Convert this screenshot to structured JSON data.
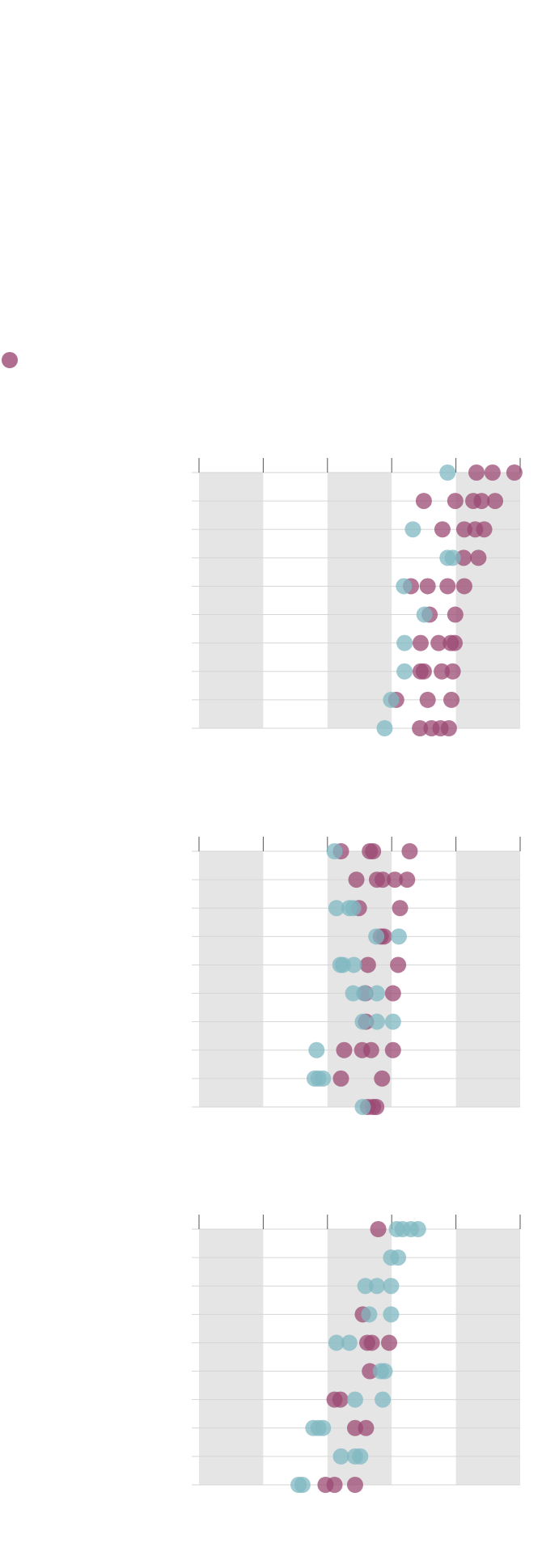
{
  "chart_data": [
    {
      "type": "scatter",
      "xlim": [
        0,
        5
      ],
      "xticks": [
        0,
        1,
        2,
        3,
        4,
        5
      ],
      "ylim": [
        9,
        0
      ],
      "yticks": [
        0,
        1,
        2,
        3,
        4,
        5,
        6,
        7,
        8,
        9
      ],
      "grid": true,
      "series": [
        {
          "color": "#9b4a73",
          "x": [
            4.32,
            4.57,
            4.91,
            3.5,
            3.99,
            4.27,
            4.4,
            4.61,
            3.79,
            4.13,
            4.3,
            4.44,
            4.12,
            4.35,
            3.3,
            3.56,
            3.87,
            4.13,
            3.59,
            3.99,
            3.45,
            3.73,
            3.92,
            3.98,
            3.45,
            3.5,
            3.78,
            3.95,
            3.07,
            3.56,
            3.93,
            3.44,
            3.62,
            3.76,
            3.89
          ],
          "values": [
            0,
            0,
            0,
            1,
            1,
            1,
            1,
            1,
            2,
            2,
            2,
            2,
            3,
            3,
            4,
            4,
            4,
            4,
            5,
            5,
            6,
            6,
            6,
            6,
            7,
            7,
            7,
            7,
            8,
            8,
            8,
            9,
            9,
            9,
            9
          ]
        },
        {
          "color": "#80b8c2",
          "x": [
            3.87,
            3.33,
            3.87,
            3.95,
            3.19,
            3.51,
            3.2,
            3.2,
            2.99,
            2.89
          ],
          "values": [
            0,
            2,
            3,
            3,
            4,
            5,
            6,
            7,
            8,
            9
          ]
        }
      ]
    },
    {
      "type": "scatter",
      "xlim": [
        0,
        5
      ],
      "xticks": [
        0,
        1,
        2,
        3,
        4,
        5
      ],
      "ylim": [
        9,
        0
      ],
      "yticks": [
        0,
        1,
        2,
        3,
        4,
        5,
        6,
        7,
        8,
        9
      ],
      "grid": true,
      "series": [
        {
          "color": "#9b4a73",
          "x": [
            2.21,
            2.66,
            2.71,
            3.28,
            2.45,
            2.77,
            2.86,
            3.05,
            3.24,
            2.49,
            3.13,
            2.83,
            2.88,
            2.63,
            3.1,
            2.59,
            3.02,
            2.6,
            2.26,
            2.54,
            2.68,
            3.02,
            2.21,
            2.85,
            2.63,
            2.71,
            2.76
          ],
          "values": [
            0,
            0,
            0,
            0,
            1,
            1,
            1,
            1,
            1,
            2,
            2,
            3,
            3,
            4,
            4,
            5,
            5,
            6,
            7,
            7,
            7,
            7,
            8,
            8,
            9,
            9,
            9
          ]
        },
        {
          "color": "#80b8c2",
          "x": [
            2.11,
            2.14,
            2.34,
            2.4,
            2.76,
            3.11,
            2.2,
            2.24,
            2.41,
            2.4,
            2.57,
            2.77,
            2.55,
            2.77,
            3.02,
            1.83,
            1.8,
            1.86,
            1.93,
            2.55
          ],
          "values": [
            0,
            2,
            2,
            2,
            3,
            3,
            4,
            4,
            4,
            5,
            5,
            5,
            6,
            6,
            6,
            7,
            8,
            8,
            8,
            9
          ]
        }
      ]
    },
    {
      "type": "scatter",
      "xlim": [
        0,
        5
      ],
      "xticks": [
        0,
        1,
        2,
        3,
        4,
        5
      ],
      "ylim": [
        9,
        0
      ],
      "yticks": [
        0,
        1,
        2,
        3,
        4,
        5,
        6,
        7,
        8,
        9
      ],
      "grid": true,
      "series": [
        {
          "color": "#9b4a73",
          "x": [
            2.79,
            2.55,
            2.62,
            2.69,
            2.96,
            2.66,
            2.11,
            2.2,
            2.43,
            2.6,
            1.97,
            2.11,
            2.43
          ],
          "values": [
            0,
            3,
            4,
            4,
            4,
            5,
            6,
            6,
            7,
            7,
            9,
            9,
            9
          ]
        },
        {
          "color": "#80b8c2",
          "x": [
            3.08,
            3.17,
            3.3,
            3.41,
            2.99,
            3.1,
            2.59,
            2.77,
            2.99,
            2.65,
            2.99,
            2.14,
            2.34,
            2.83,
            2.89,
            2.43,
            2.86,
            1.78,
            1.86,
            1.93,
            2.21,
            2.43,
            2.51,
            1.55,
            1.61
          ],
          "values": [
            0,
            0,
            0,
            0,
            1,
            1,
            2,
            2,
            2,
            3,
            3,
            4,
            4,
            5,
            5,
            6,
            6,
            7,
            7,
            7,
            8,
            8,
            8,
            9,
            9
          ]
        }
      ]
    }
  ]
}
